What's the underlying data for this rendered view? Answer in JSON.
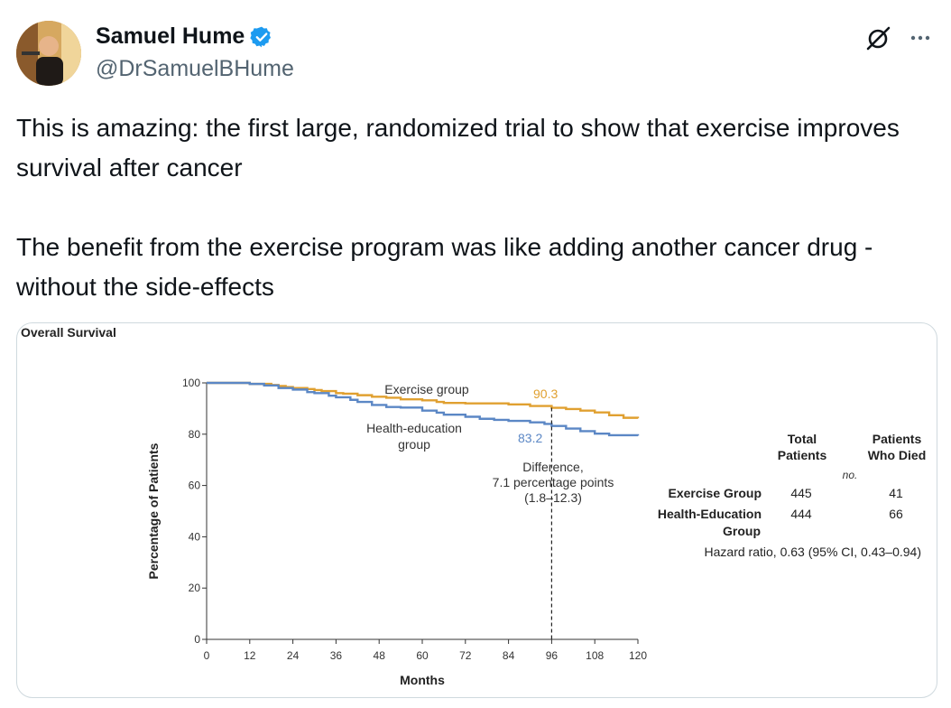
{
  "author": {
    "name": "Samuel Hume",
    "handle": "@DrSamuelBHume"
  },
  "tweet": {
    "text": "This is amazing: the first large, randomized trial to show that exercise improves survival after cancer\n\nThe benefit from the exercise program was like adding another cancer drug - without the side-effects"
  },
  "colors": {
    "exercise": "#e0a030",
    "health": "#5b87c5",
    "verified": "#1d9bf0"
  },
  "chart_data": {
    "type": "line",
    "title": "Overall Survival",
    "xlabel": "Months",
    "ylabel": "Percentage of Patients",
    "xlim": [
      0,
      120
    ],
    "ylim": [
      0,
      100
    ],
    "x_ticks": [
      0,
      12,
      24,
      36,
      48,
      60,
      72,
      84,
      96,
      108,
      120
    ],
    "y_ticks": [
      0,
      20,
      40,
      60,
      80,
      100
    ],
    "series": [
      {
        "name": "Exercise group",
        "x": [
          0,
          12,
          18,
          20,
          22,
          24,
          28,
          30,
          32,
          36,
          38,
          42,
          46,
          50,
          54,
          60,
          64,
          66,
          72,
          78,
          84,
          90,
          96,
          100,
          104,
          108,
          112,
          116,
          120
        ],
        "y": [
          100,
          99.6,
          99.2,
          98.8,
          98.4,
          98,
          97.6,
          97.2,
          96.8,
          96,
          95.8,
          95.2,
          94.6,
          94.2,
          93.6,
          93.2,
          92.6,
          92.2,
          92,
          92,
          91.6,
          91,
          90.3,
          89.8,
          89.2,
          88.5,
          87.4,
          86.4,
          86.2
        ]
      },
      {
        "name": "Health-education group",
        "x": [
          0,
          12,
          16,
          20,
          24,
          28,
          30,
          34,
          36,
          40,
          42,
          46,
          50,
          54,
          60,
          64,
          66,
          72,
          76,
          80,
          84,
          90,
          94,
          96,
          100,
          104,
          108,
          112,
          120
        ],
        "y": [
          100,
          99.6,
          99,
          98,
          97.4,
          96.4,
          96,
          95,
          94.4,
          93.4,
          92.6,
          91.4,
          90.6,
          90.4,
          89.2,
          88.4,
          87.6,
          86.8,
          86,
          85.6,
          85.2,
          84.6,
          84,
          83.2,
          82.2,
          81.2,
          80.2,
          79.6,
          79.4
        ]
      }
    ],
    "annotations": {
      "exercise_label": "Exercise group",
      "health_label_line1": "Health-education",
      "health_label_line2": "group",
      "exercise_value": "90.3",
      "health_value": "83.2",
      "diff_line1": "Difference,",
      "diff_line2": "7.1 percentage points",
      "diff_line3": "(1.8–12.3)",
      "diff_x": 96
    },
    "table": {
      "col1_line1": "Total",
      "col1_line2": "Patients",
      "col2_line1": "Patients",
      "col2_line2": "Who Died",
      "unit": "no.",
      "rows": [
        {
          "label_line1": "Exercise Group",
          "label_line2": "",
          "total": "445",
          "died": "41"
        },
        {
          "label_line1": "Health-Education",
          "label_line2": "Group",
          "total": "444",
          "died": "66"
        }
      ],
      "hazard": "Hazard ratio, 0.63 (95% CI, 0.43–0.94)"
    }
  }
}
